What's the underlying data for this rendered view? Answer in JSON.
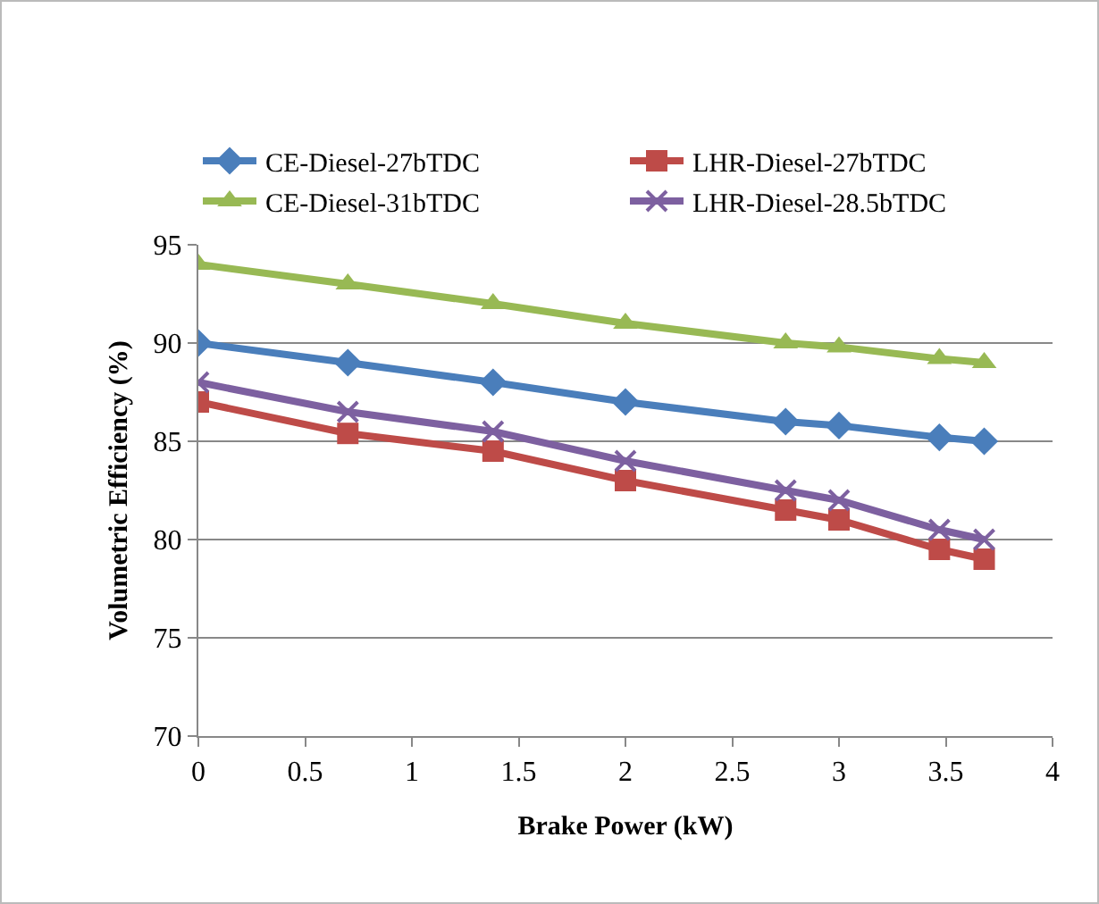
{
  "chart_data": {
    "type": "line",
    "xlabel": "Brake Power (kW)",
    "ylabel": "Volumetric Efficiency (%)",
    "xlim": [
      0,
      4
    ],
    "xticks": [
      0,
      0.5,
      1,
      1.5,
      2,
      2.5,
      3,
      3.5,
      4
    ],
    "ylim": [
      70,
      95
    ],
    "yticks": [
      70,
      75,
      80,
      85,
      90,
      95
    ],
    "grid": "y",
    "legend": "top",
    "line_style": "solid",
    "x": [
      0,
      0.7,
      1.38,
      2,
      2.75,
      3,
      3.47,
      3.68
    ],
    "series": [
      {
        "name": "CE-Diesel-27bTDC",
        "color": "#4a7ebb",
        "marker": "diamond",
        "values": [
          90,
          89,
          88,
          87,
          86,
          85.8,
          85.2,
          85
        ]
      },
      {
        "name": "LHR-Diesel-27bTDC",
        "color": "#be4b48",
        "marker": "square",
        "values": [
          87,
          85.4,
          84.5,
          83,
          81.5,
          81,
          79.5,
          79
        ]
      },
      {
        "name": "CE-Diesel-31bTDC",
        "color": "#98b954",
        "marker": "triangle",
        "values": [
          94,
          93,
          92,
          91,
          90,
          89.8,
          89.2,
          89
        ]
      },
      {
        "name": "LHR-Diesel-28.5bTDC",
        "color": "#7d60a0",
        "marker": "cross",
        "values": [
          88,
          86.5,
          85.5,
          84,
          82.5,
          82,
          80.5,
          80
        ]
      }
    ]
  }
}
